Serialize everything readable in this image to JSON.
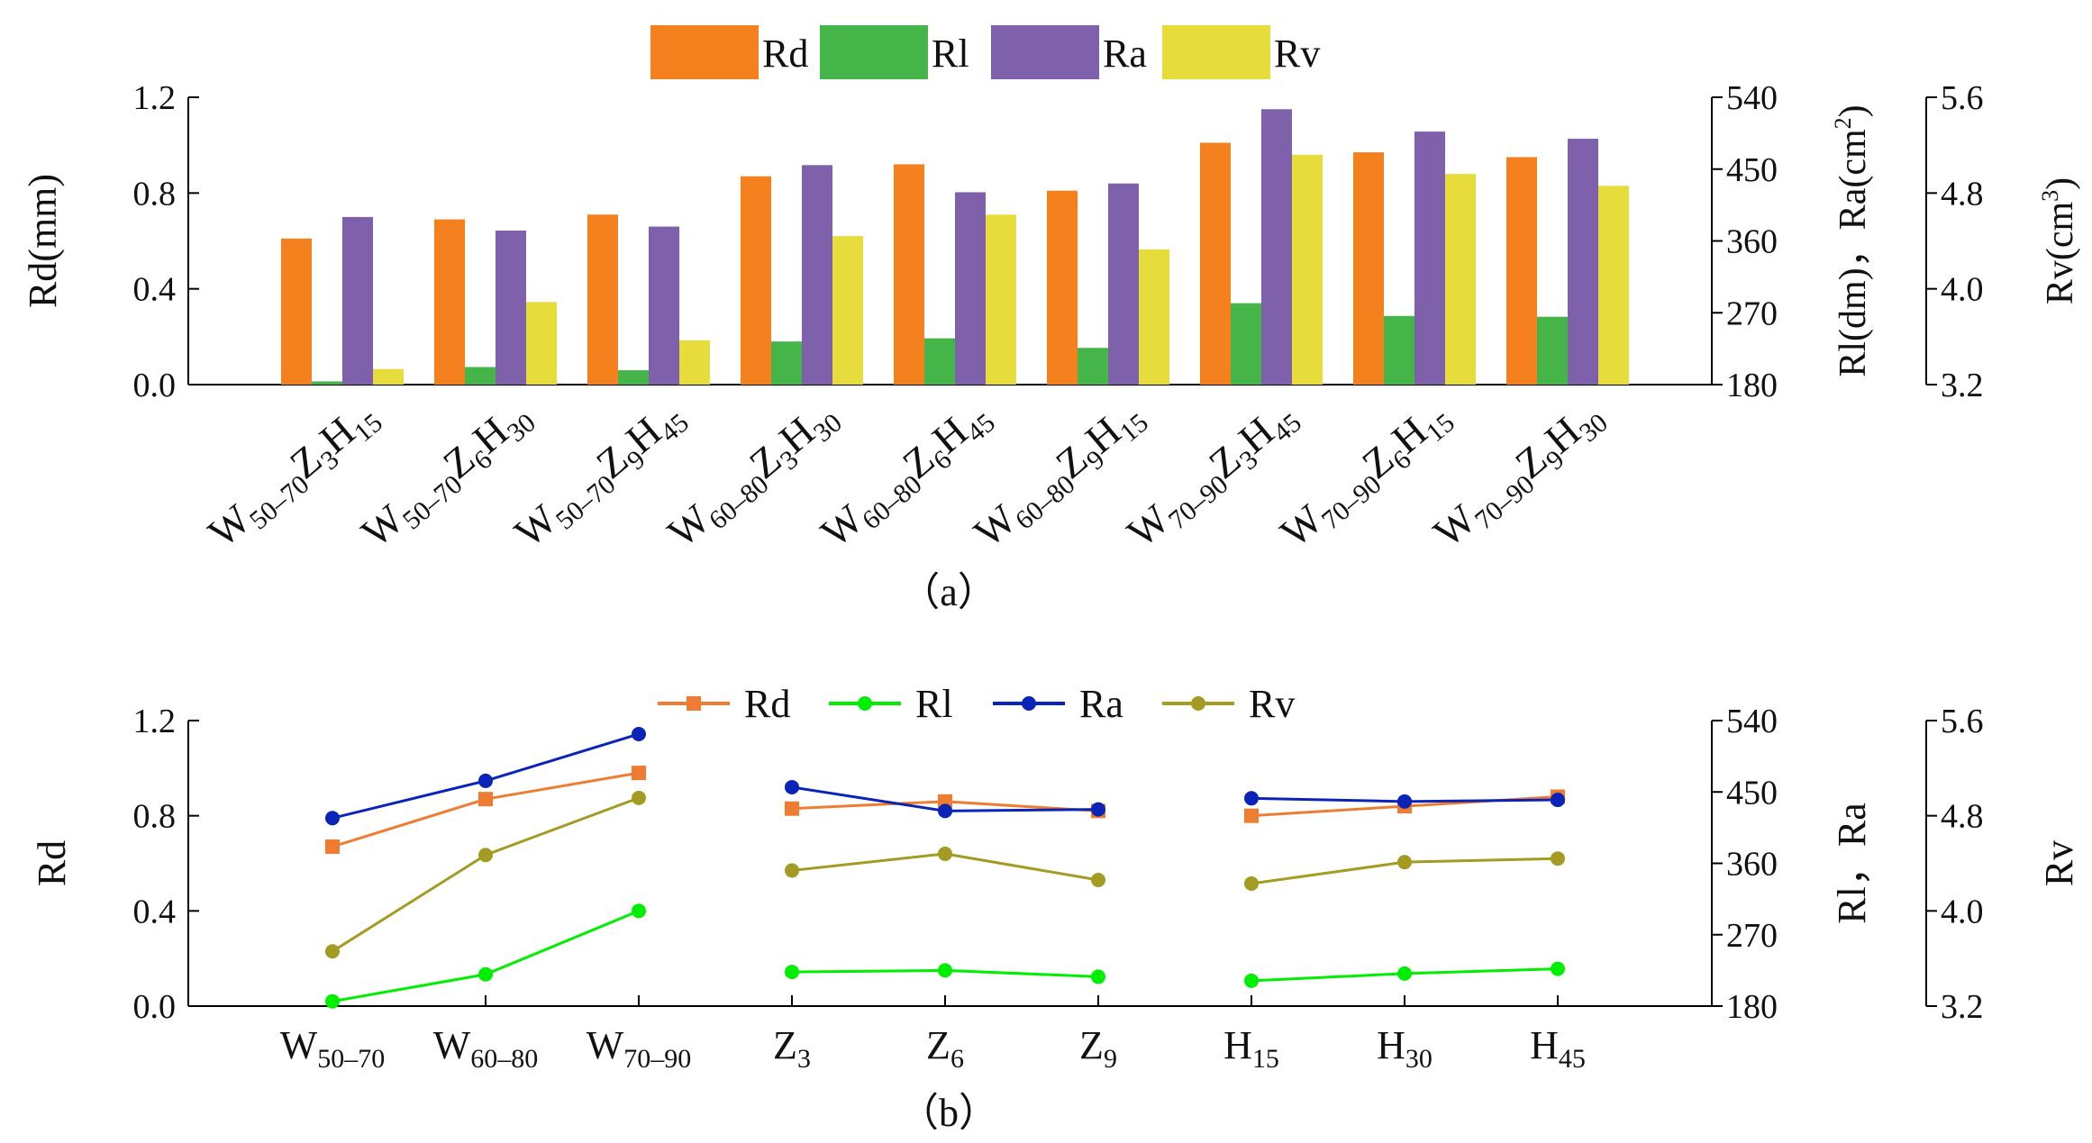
{
  "chart_data": [
    {
      "panel": "a",
      "type": "bar",
      "caption": "（a）",
      "categories": [
        {
          "base": "W",
          "sub": "50–70",
          "parts": [
            [
              "Z",
              "3"
            ],
            [
              "H",
              "15"
            ]
          ]
        },
        {
          "base": "W",
          "sub": "50–70",
          "parts": [
            [
              "Z",
              "6"
            ],
            [
              "H",
              "30"
            ]
          ]
        },
        {
          "base": "W",
          "sub": "50–70",
          "parts": [
            [
              "Z",
              "9"
            ],
            [
              "H",
              "45"
            ]
          ]
        },
        {
          "base": "W",
          "sub": "60–80",
          "parts": [
            [
              "Z",
              "3"
            ],
            [
              "H",
              "30"
            ]
          ]
        },
        {
          "base": "W",
          "sub": "60–80",
          "parts": [
            [
              "Z",
              "6"
            ],
            [
              "H",
              "45"
            ]
          ]
        },
        {
          "base": "W",
          "sub": "60–80",
          "parts": [
            [
              "Z",
              "9"
            ],
            [
              "H",
              "15"
            ]
          ]
        },
        {
          "base": "W",
          "sub": "70–90",
          "parts": [
            [
              "Z",
              "3"
            ],
            [
              "H",
              "45"
            ]
          ]
        },
        {
          "base": "W",
          "sub": "70–90",
          "parts": [
            [
              "Z",
              "6"
            ],
            [
              "H",
              "15"
            ]
          ]
        },
        {
          "base": "W",
          "sub": "70–90",
          "parts": [
            [
              "Z",
              "9"
            ],
            [
              "H",
              "30"
            ]
          ]
        }
      ],
      "series": [
        {
          "name": "Rd",
          "color": "#f5801e",
          "axis": "left",
          "values": [
            0.61,
            0.69,
            0.71,
            0.87,
            0.92,
            0.81,
            1.01,
            0.97,
            0.95
          ]
        },
        {
          "name": "Rl",
          "color": "#46b549",
          "axis": "right1",
          "values": [
            184,
            202,
            198,
            234,
            238,
            226,
            282,
            266,
            265
          ]
        },
        {
          "name": "Ra",
          "color": "#7f61ab",
          "axis": "right1",
          "values": [
            390,
            373,
            378,
            455,
            421,
            432,
            525,
            497,
            488
          ]
        },
        {
          "name": "Rv",
          "color": "#e6dc3c",
          "axis": "right2",
          "values": [
            3.33,
            3.89,
            3.57,
            4.44,
            4.62,
            4.33,
            5.12,
            4.96,
            4.86
          ]
        }
      ],
      "axes": {
        "left": {
          "label": "Rd(mm)",
          "ylim": [
            0,
            1.2
          ],
          "ticks": [
            "0.0",
            "0.4",
            "0.8",
            "1.2"
          ]
        },
        "right1": {
          "label": "Rl(dm)，Ra(cm²)",
          "label_main": "Rl(dm)，Ra(cm",
          "label_sup": "2",
          "label_end": ")",
          "ylim": [
            180,
            540
          ],
          "ticks": [
            "180",
            "270",
            "360",
            "450",
            "540"
          ]
        },
        "right2": {
          "label": "Rv(cm³)",
          "label_main": "Rv(cm",
          "label_sup": "3",
          "label_end": ")",
          "ylim": [
            3.2,
            5.6
          ],
          "ticks": [
            "3.2",
            "4.0",
            "4.8",
            "5.6"
          ]
        }
      },
      "legend": [
        "Rd",
        "Rl",
        "Ra",
        "Rv"
      ],
      "legend_position": "top-center"
    },
    {
      "panel": "b",
      "type": "line",
      "caption": "（b）",
      "categories": [
        {
          "base": "W",
          "sub": "50–70"
        },
        {
          "base": "W",
          "sub": "60–80"
        },
        {
          "base": "W",
          "sub": "70–90"
        },
        {
          "base": "Z",
          "sub": "3"
        },
        {
          "base": "Z",
          "sub": "6"
        },
        {
          "base": "Z",
          "sub": "9"
        },
        {
          "base": "H",
          "sub": "15"
        },
        {
          "base": "H",
          "sub": "30"
        },
        {
          "base": "H",
          "sub": "45"
        }
      ],
      "groups": [
        [
          0,
          1,
          2
        ],
        [
          3,
          4,
          5
        ],
        [
          6,
          7,
          8
        ]
      ],
      "series": [
        {
          "name": "Rd",
          "color": "#ee7d31",
          "marker": "square",
          "axis": "left",
          "values": [
            0.67,
            0.87,
            0.98,
            0.83,
            0.86,
            0.82,
            0.8,
            0.84,
            0.88
          ]
        },
        {
          "name": "Rl",
          "color": "#00ee00",
          "marker": "circle",
          "axis": "right1",
          "values": [
            186,
            220,
            300,
            223,
            225,
            217,
            212,
            221,
            227
          ]
        },
        {
          "name": "Ra",
          "color": "#0a24b8",
          "marker": "circle",
          "axis": "right1",
          "values": [
            417,
            464,
            523,
            456,
            426,
            428,
            442,
            438,
            440
          ]
        },
        {
          "name": "Rv",
          "color": "#a39b22",
          "marker": "circle",
          "axis": "right2",
          "values": [
            3.66,
            4.47,
            4.95,
            4.34,
            4.48,
            4.26,
            4.23,
            4.41,
            4.44
          ]
        }
      ],
      "axes": {
        "left": {
          "label": "Rd",
          "ylim": [
            0,
            1.2
          ],
          "ticks": [
            "0.0",
            "0.4",
            "0.8",
            "1.2"
          ]
        },
        "right1": {
          "label": "Rl，Ra",
          "ylim": [
            180,
            540
          ],
          "ticks": [
            "180",
            "270",
            "360",
            "450",
            "540"
          ]
        },
        "right2": {
          "label": "Rv",
          "ylim": [
            3.2,
            5.6
          ],
          "ticks": [
            "3.2",
            "4.0",
            "4.8",
            "5.6"
          ]
        }
      },
      "legend": [
        "Rd",
        "Rl",
        "Ra",
        "Rv"
      ],
      "legend_position": "top-center"
    }
  ]
}
